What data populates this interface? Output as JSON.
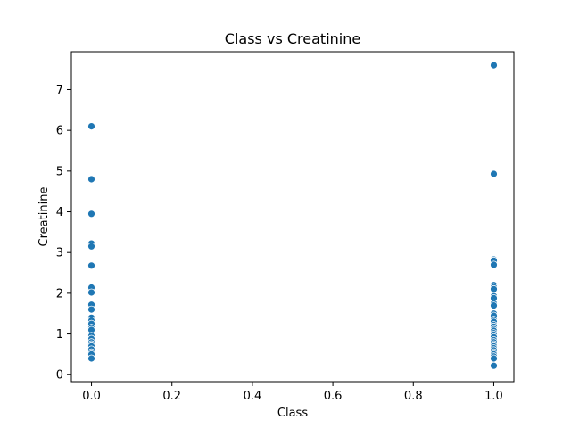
{
  "chart_data": {
    "type": "scatter",
    "title": "Class vs Creatinine",
    "xlabel": "Class",
    "ylabel": "Creatinine",
    "xlim": [
      -0.05,
      1.05
    ],
    "ylim": [
      -0.17,
      7.93
    ],
    "xticks": [
      0.0,
      0.2,
      0.4,
      0.6,
      0.8,
      1.0
    ],
    "xtick_labels": [
      "0.0",
      "0.2",
      "0.4",
      "0.6",
      "0.8",
      "1.0"
    ],
    "yticks": [
      0,
      1,
      2,
      3,
      4,
      5,
      6,
      7
    ],
    "ytick_labels": [
      "0",
      "1",
      "2",
      "3",
      "4",
      "5",
      "6",
      "7"
    ],
    "grid": false,
    "point_color": "#1f77b4",
    "points": [
      {
        "x": 0,
        "y": 6.1
      },
      {
        "x": 0,
        "y": 4.8
      },
      {
        "x": 0,
        "y": 3.95
      },
      {
        "x": 0,
        "y": 3.22
      },
      {
        "x": 0,
        "y": 3.15
      },
      {
        "x": 0,
        "y": 2.68
      },
      {
        "x": 0,
        "y": 2.14
      },
      {
        "x": 0,
        "y": 2.02
      },
      {
        "x": 0,
        "y": 1.72
      },
      {
        "x": 0,
        "y": 1.6
      },
      {
        "x": 0,
        "y": 1.4
      },
      {
        "x": 0,
        "y": 1.33
      },
      {
        "x": 0,
        "y": 1.25
      },
      {
        "x": 0,
        "y": 1.15
      },
      {
        "x": 0,
        "y": 1.1
      },
      {
        "x": 0,
        "y": 0.95
      },
      {
        "x": 0,
        "y": 0.88
      },
      {
        "x": 0,
        "y": 0.8
      },
      {
        "x": 0,
        "y": 0.75
      },
      {
        "x": 0,
        "y": 0.7
      },
      {
        "x": 0,
        "y": 0.62
      },
      {
        "x": 0,
        "y": 0.55
      },
      {
        "x": 0,
        "y": 0.5
      },
      {
        "x": 0,
        "y": 0.4
      },
      {
        "x": 1,
        "y": 7.6
      },
      {
        "x": 1,
        "y": 4.93
      },
      {
        "x": 1,
        "y": 2.83
      },
      {
        "x": 1,
        "y": 2.8
      },
      {
        "x": 1,
        "y": 2.7
      },
      {
        "x": 1,
        "y": 2.2
      },
      {
        "x": 1,
        "y": 2.15
      },
      {
        "x": 1,
        "y": 2.1
      },
      {
        "x": 1,
        "y": 1.93
      },
      {
        "x": 1,
        "y": 1.88
      },
      {
        "x": 1,
        "y": 1.75
      },
      {
        "x": 1,
        "y": 1.7
      },
      {
        "x": 1,
        "y": 1.5
      },
      {
        "x": 1,
        "y": 1.45
      },
      {
        "x": 1,
        "y": 1.35
      },
      {
        "x": 1,
        "y": 1.3
      },
      {
        "x": 1,
        "y": 1.22
      },
      {
        "x": 1,
        "y": 1.18
      },
      {
        "x": 1,
        "y": 1.12
      },
      {
        "x": 1,
        "y": 1.08
      },
      {
        "x": 1,
        "y": 1.02
      },
      {
        "x": 1,
        "y": 0.98
      },
      {
        "x": 1,
        "y": 0.92
      },
      {
        "x": 1,
        "y": 0.85
      },
      {
        "x": 1,
        "y": 0.8
      },
      {
        "x": 1,
        "y": 0.75
      },
      {
        "x": 1,
        "y": 0.7
      },
      {
        "x": 1,
        "y": 0.65
      },
      {
        "x": 1,
        "y": 0.6
      },
      {
        "x": 1,
        "y": 0.55
      },
      {
        "x": 1,
        "y": 0.5
      },
      {
        "x": 1,
        "y": 0.45
      },
      {
        "x": 1,
        "y": 0.4
      },
      {
        "x": 1,
        "y": 0.22
      }
    ]
  }
}
